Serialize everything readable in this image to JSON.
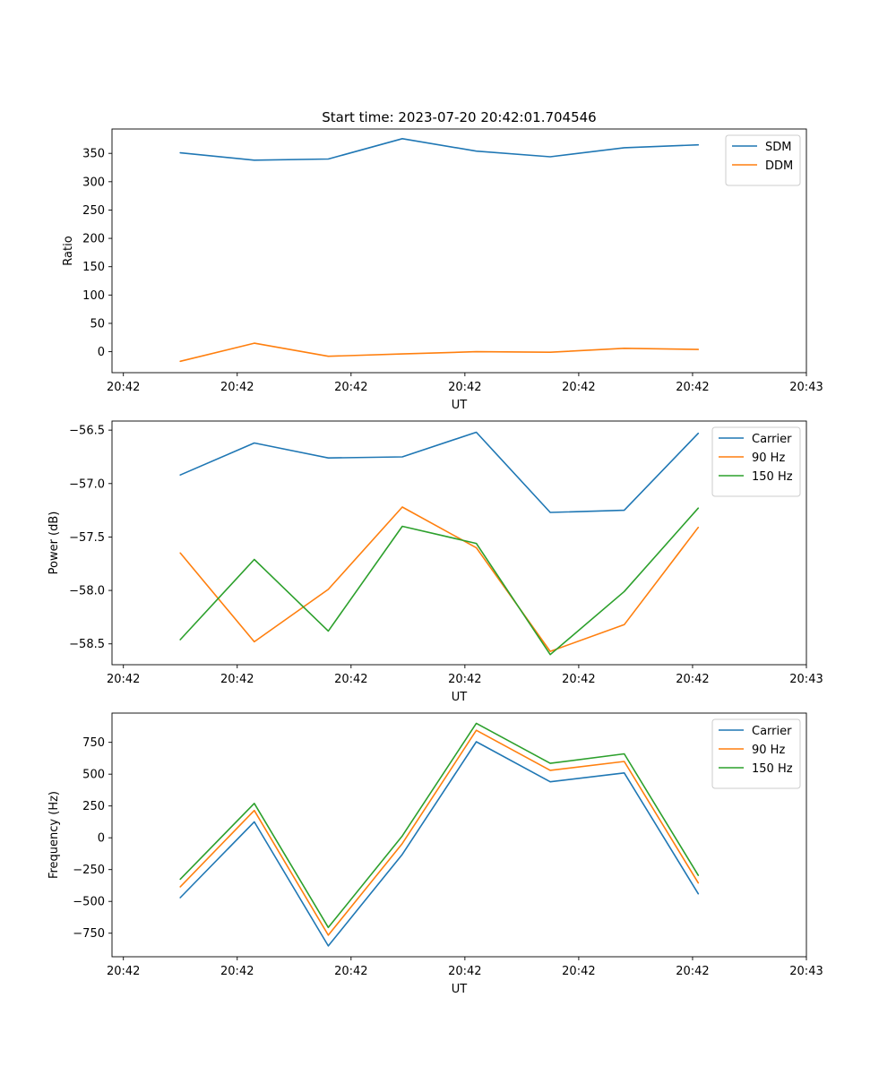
{
  "figure": {
    "title": "Start time: 2023-07-20 20:42:01.704546"
  },
  "chart_data": [
    {
      "type": "line",
      "title": "Start time: 2023-07-20 20:42:01.704546",
      "xlabel": "UT",
      "ylabel": "Ratio",
      "x": [
        0.5,
        1.15,
        1.8,
        2.45,
        3.1,
        3.75,
        4.4,
        5.05
      ],
      "xlim": [
        -0.1,
        6.0
      ],
      "ylim": [
        -37,
        393
      ],
      "xticks": [
        0,
        1,
        2,
        3,
        4,
        5,
        6
      ],
      "xtick_labels": [
        "20:42",
        "20:42",
        "20:42",
        "20:42",
        "20:42",
        "20:42",
        "20:43"
      ],
      "yticks": [
        0,
        50,
        100,
        150,
        200,
        250,
        300,
        350
      ],
      "ytick_labels": [
        "0",
        "50",
        "100",
        "150",
        "200",
        "250",
        "300",
        "350"
      ],
      "legend": "top-right",
      "series": [
        {
          "name": "SDM",
          "color": "#1f77b4",
          "values": [
            351,
            338,
            340,
            376,
            354,
            344,
            360,
            365
          ]
        },
        {
          "name": "DDM",
          "color": "#ff7f0e",
          "values": [
            -17,
            15,
            -8,
            -4,
            0,
            -1,
            6,
            4
          ]
        }
      ]
    },
    {
      "type": "line",
      "title": "",
      "xlabel": "UT",
      "ylabel": "Power (dB)",
      "x": [
        0.5,
        1.15,
        1.8,
        2.45,
        3.1,
        3.75,
        4.4,
        5.05
      ],
      "xlim": [
        -0.1,
        6.0
      ],
      "ylim": [
        -58.695,
        -56.415
      ],
      "xticks": [
        0,
        1,
        2,
        3,
        4,
        5,
        6
      ],
      "xtick_labels": [
        "20:42",
        "20:42",
        "20:42",
        "20:42",
        "20:42",
        "20:42",
        "20:43"
      ],
      "yticks": [
        -58.5,
        -58.0,
        -57.5,
        -57.0,
        -56.5
      ],
      "ytick_labels": [
        "−58.5",
        "−58.0",
        "−57.5",
        "−57.0",
        "−56.5"
      ],
      "legend": "top-right",
      "series": [
        {
          "name": "Carrier",
          "color": "#1f77b4",
          "values": [
            -56.92,
            -56.62,
            -56.76,
            -56.75,
            -56.52,
            -57.27,
            -57.25,
            -56.53
          ]
        },
        {
          "name": "90 Hz",
          "color": "#ff7f0e",
          "values": [
            -57.65,
            -58.48,
            -57.99,
            -57.22,
            -57.6,
            -58.57,
            -58.32,
            -57.41
          ]
        },
        {
          "name": "150 Hz",
          "color": "#2ca02c",
          "values": [
            -58.46,
            -57.71,
            -58.38,
            -57.4,
            -57.56,
            -58.6,
            -58.01,
            -57.23
          ]
        }
      ]
    },
    {
      "type": "line",
      "title": "",
      "xlabel": "UT",
      "ylabel": "Frequency (Hz)",
      "x": [
        0.5,
        1.15,
        1.8,
        2.45,
        3.1,
        3.75,
        4.4,
        5.05
      ],
      "xlim": [
        -0.1,
        6.0
      ],
      "ylim": [
        -935,
        980
      ],
      "xticks": [
        0,
        1,
        2,
        3,
        4,
        5,
        6
      ],
      "xtick_labels": [
        "20:42",
        "20:42",
        "20:42",
        "20:42",
        "20:42",
        "20:42",
        "20:43"
      ],
      "yticks": [
        -750,
        -500,
        -250,
        0,
        250,
        500,
        750
      ],
      "ytick_labels": [
        "−750",
        "−500",
        "−250",
        "0",
        "250",
        "500",
        "750"
      ],
      "legend": "top-right",
      "series": [
        {
          "name": "Carrier",
          "color": "#1f77b4",
          "values": [
            -470,
            125,
            -850,
            -130,
            755,
            440,
            510,
            -440
          ]
        },
        {
          "name": "90 Hz",
          "color": "#ff7f0e",
          "values": [
            -385,
            215,
            -765,
            -45,
            845,
            530,
            600,
            -355
          ]
        },
        {
          "name": "150 Hz",
          "color": "#2ca02c",
          "values": [
            -325,
            270,
            -705,
            15,
            900,
            585,
            660,
            -295
          ]
        }
      ]
    }
  ]
}
